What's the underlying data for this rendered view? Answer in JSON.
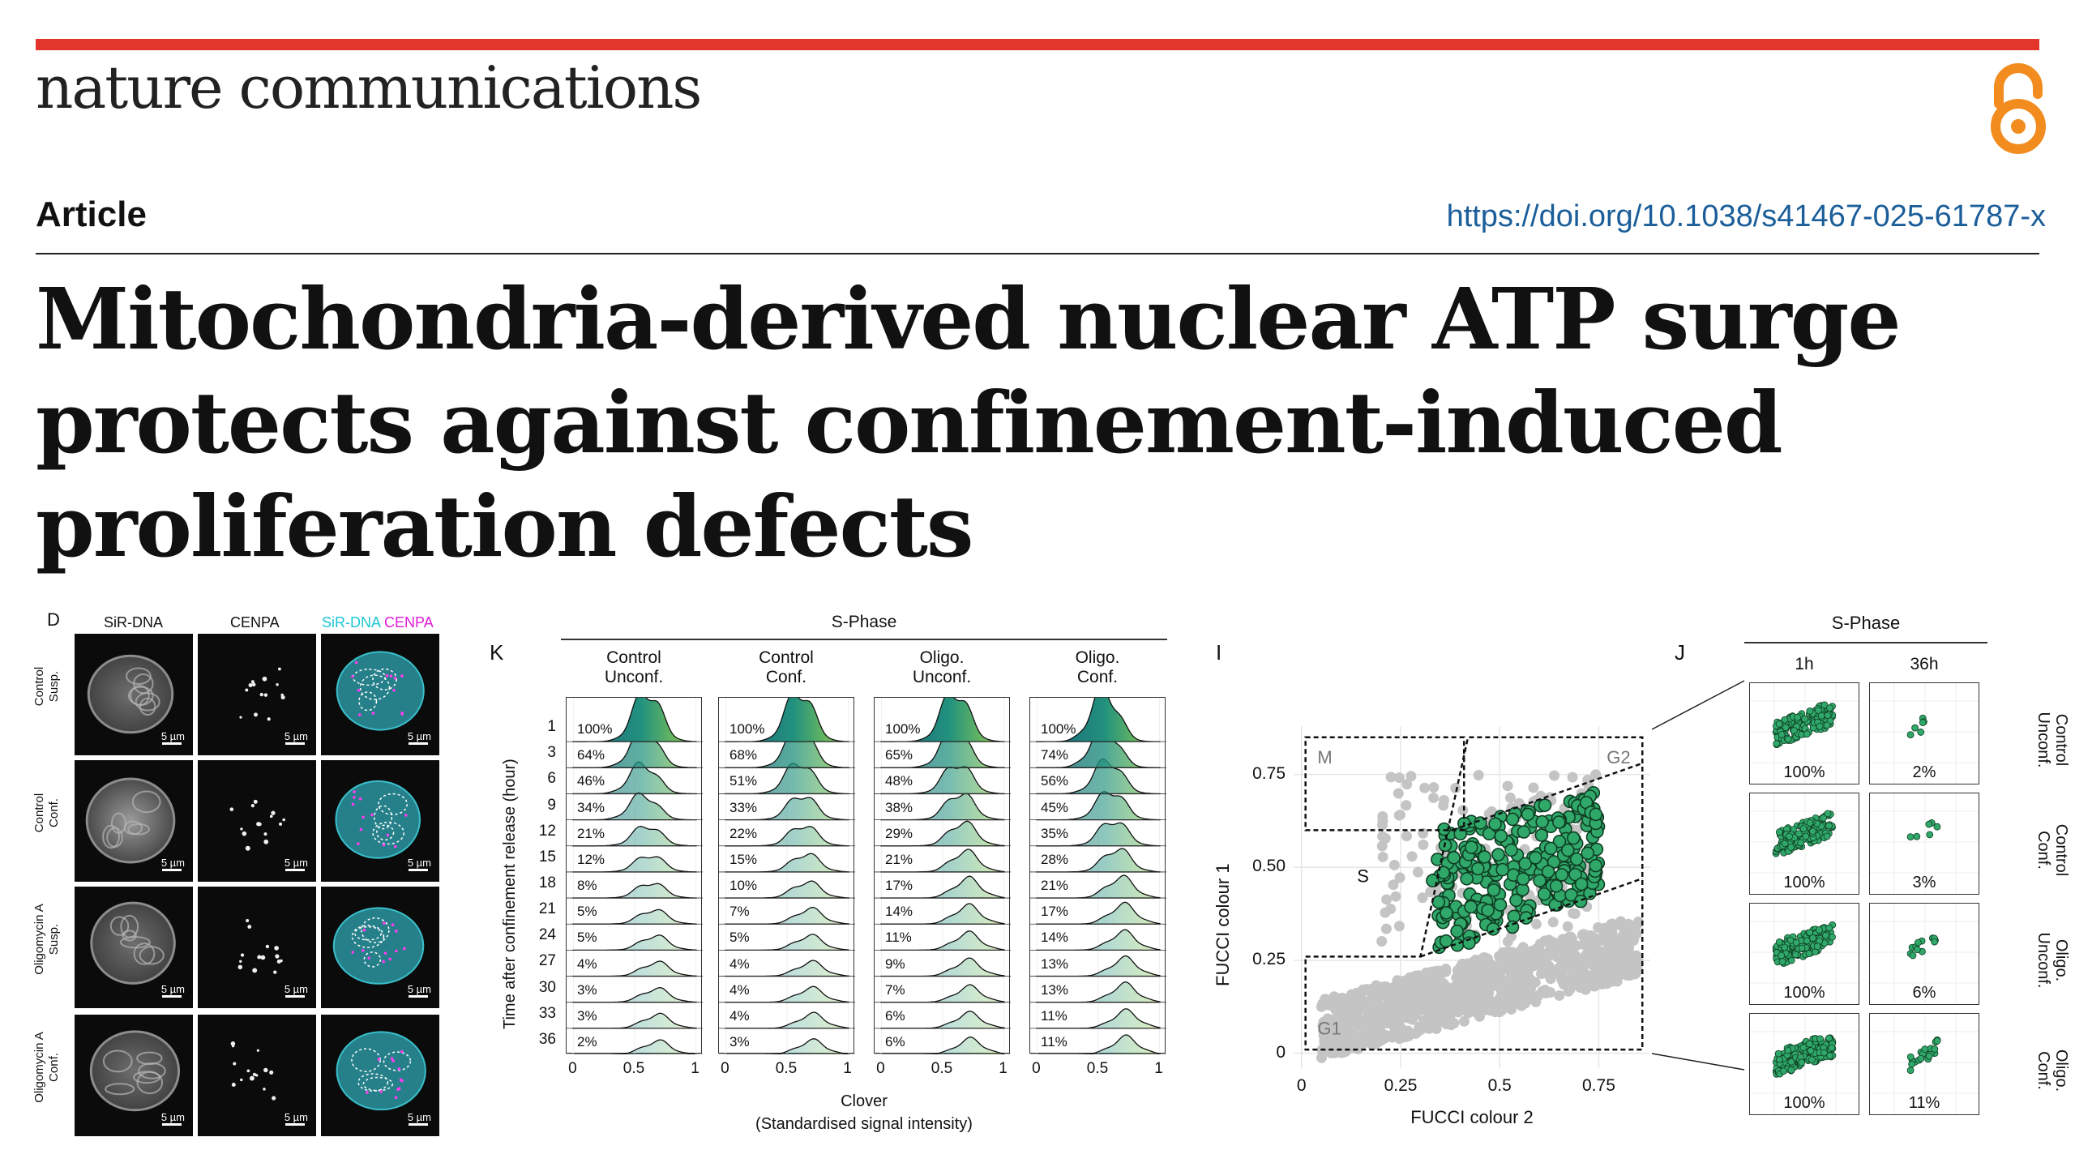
{
  "header": {
    "journal": "nature communications",
    "article_type": "Article",
    "doi": "https://doi.org/10.1038/s41467-025-61787-x",
    "title_lines": [
      "Mitochondria-derived nuclear ATP surge",
      "protects against confinement-induced",
      "proliferation defects"
    ],
    "open_access_icon": "open-access-lock-icon",
    "accent_color": "#e2352b",
    "oa_color": "#f28c1e",
    "doi_color": "#1b5e9a"
  },
  "panel_d": {
    "letter": "D",
    "columns": [
      "SiR-DNA",
      "CENPA",
      "SiR-DNA",
      "CENPA"
    ],
    "rows": [
      {
        "label1": "Control",
        "label2": "Susp."
      },
      {
        "label1": "Control",
        "label2": "Conf."
      },
      {
        "label1": "Oligomycin A",
        "label2": "Susp."
      },
      {
        "label1": "Oligomycin A",
        "label2": "Conf."
      }
    ],
    "scale_bar": "5 µm"
  },
  "panel_k": {
    "letter": "K",
    "phase": "S-Phase",
    "columns": [
      {
        "line1": "Control",
        "line2": "Unconf."
      },
      {
        "line1": "Control",
        "line2": "Conf."
      },
      {
        "line1": "Oligo.",
        "line2": "Unconf."
      },
      {
        "line1": "Oligo.",
        "line2": "Conf."
      }
    ],
    "ylabel": "Time after confinement release (hour)",
    "xlabel_line1": "Clover",
    "xlabel_line2": "(Standardised signal intensity)",
    "hours": [
      "1",
      "3",
      "6",
      "9",
      "12",
      "15",
      "18",
      "21",
      "24",
      "27",
      "30",
      "33",
      "36"
    ],
    "x_ticks": [
      "0",
      "0.5",
      "1"
    ],
    "percentages": [
      [
        "100%",
        "64%",
        "46%",
        "34%",
        "21%",
        "12%",
        "8%",
        "5%",
        "5%",
        "4%",
        "3%",
        "3%",
        "2%"
      ],
      [
        "100%",
        "68%",
        "51%",
        "33%",
        "22%",
        "15%",
        "10%",
        "7%",
        "5%",
        "4%",
        "4%",
        "4%",
        "3%"
      ],
      [
        "100%",
        "65%",
        "48%",
        "38%",
        "29%",
        "21%",
        "17%",
        "14%",
        "11%",
        "9%",
        "7%",
        "6%",
        "6%"
      ],
      [
        "100%",
        "74%",
        "56%",
        "45%",
        "35%",
        "28%",
        "21%",
        "17%",
        "14%",
        "13%",
        "13%",
        "11%",
        "11%"
      ]
    ],
    "peak_positions": [
      [
        0.6,
        0.58,
        0.57,
        0.57,
        0.6,
        0.62,
        0.63,
        0.65,
        0.66,
        0.67,
        0.67,
        0.68,
        0.68
      ],
      [
        0.6,
        0.6,
        0.6,
        0.62,
        0.63,
        0.65,
        0.66,
        0.68,
        0.68,
        0.69,
        0.69,
        0.7,
        0.7
      ],
      [
        0.6,
        0.6,
        0.62,
        0.64,
        0.66,
        0.68,
        0.7,
        0.7,
        0.7,
        0.7,
        0.71,
        0.71,
        0.72
      ],
      [
        0.55,
        0.55,
        0.58,
        0.6,
        0.62,
        0.65,
        0.68,
        0.7,
        0.7,
        0.71,
        0.71,
        0.72,
        0.72
      ]
    ]
  },
  "panel_i": {
    "letter": "I",
    "xlabel": "FUCCI colour 2",
    "ylabel": "FUCCI colour 1",
    "x_ticks": [
      "0",
      "0.25",
      "0.5",
      "0.75"
    ],
    "y_ticks": [
      "0",
      "0.25",
      "0.50",
      "0.75"
    ],
    "regions": [
      "M",
      "G2",
      "S",
      "G1"
    ],
    "highlight_color": "#2fa86a",
    "background_color": "#c8c8c8"
  },
  "panel_j": {
    "letter": "J",
    "phase": "S-Phase",
    "columns": [
      "1h",
      "36h"
    ],
    "rows": [
      {
        "line1": "Control",
        "line2": "Unconf.",
        "left": "100%",
        "right": "2%",
        "right_frac": 0.02
      },
      {
        "line1": "Control",
        "line2": "Conf.",
        "left": "100%",
        "right": "3%",
        "right_frac": 0.03
      },
      {
        "line1": "Oligo.",
        "line2": "Unconf.",
        "left": "100%",
        "right": "6%",
        "right_frac": 0.06
      },
      {
        "line1": "Oligo.",
        "line2": "Conf.",
        "left": "100%",
        "right": "11%",
        "right_frac": 0.11
      }
    ]
  }
}
